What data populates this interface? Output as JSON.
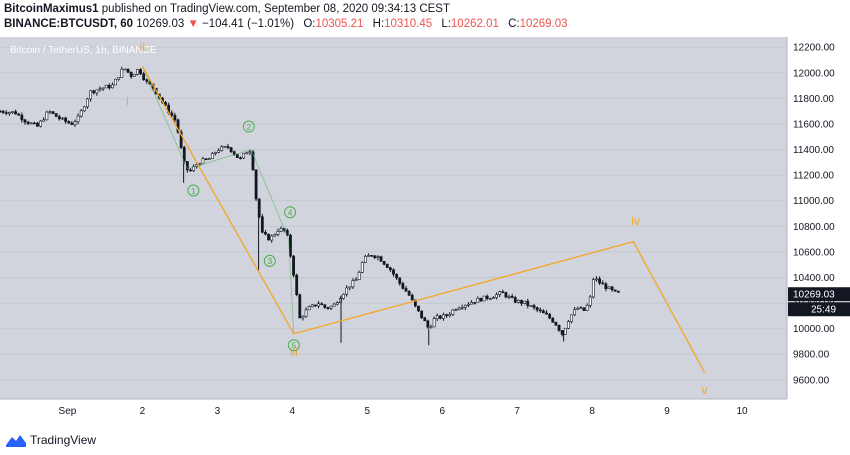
{
  "header": {
    "author": "BitcoinMaximus1",
    "published_text": "published on TradingView.com, September 08, 2020 09:34:13 CEST",
    "symbol": "BINANCE:BTCUSDT, 60",
    "last": "10269.03",
    "change": "−104.41 (−1.01%)",
    "o_label": "O:",
    "o": "10305.21",
    "h_label": "H:",
    "h": "10310.45",
    "l_label": "L:",
    "l": "10262.01",
    "c_label": "C:",
    "c": "10269.03",
    "arrow": "▼"
  },
  "footer": {
    "brand": "TradingView"
  },
  "colors": {
    "background": "#d1d4dc",
    "wave": "#f5a623",
    "subwave": "#4caf50",
    "candle": "#131722",
    "price_tag": "#131722"
  },
  "chart_data": {
    "type": "candlestick",
    "title": "Bitcoin / TetherUS, 1h, BINANCE",
    "x_ticks": [
      "Sep",
      "2",
      "3",
      "4",
      "5",
      "6",
      "7",
      "8",
      "9",
      "10"
    ],
    "x_tick_values": [
      1,
      2,
      3,
      4,
      5,
      6,
      7,
      8,
      9,
      10
    ],
    "xlim": [
      0.1,
      10.6
    ],
    "ylim": [
      9450,
      12280
    ],
    "y_ticks": [
      9600,
      9800,
      10000,
      10200,
      10400,
      10600,
      10800,
      11000,
      11200,
      11400,
      11600,
      11800,
      12000,
      12200
    ],
    "last_price_label": "10269.03",
    "countdown_label": "25:49",
    "price_path": [
      [
        0.1,
        11700
      ],
      [
        0.3,
        11690
      ],
      [
        0.45,
        11620
      ],
      [
        0.6,
        11580
      ],
      [
        0.75,
        11700
      ],
      [
        0.9,
        11640
      ],
      [
        1.05,
        11600
      ],
      [
        1.15,
        11650
      ],
      [
        1.3,
        11850
      ],
      [
        1.45,
        11880
      ],
      [
        1.6,
        11900
      ],
      [
        1.75,
        12040
      ],
      [
        1.85,
        11980
      ],
      [
        1.95,
        12030
      ],
      [
        2.05,
        11930
      ],
      [
        2.15,
        11880
      ],
      [
        2.3,
        11740
      ],
      [
        2.45,
        11620
      ],
      [
        2.55,
        11300
      ],
      [
        2.62,
        11220
      ],
      [
        2.75,
        11300
      ],
      [
        2.9,
        11330
      ],
      [
        3.0,
        11400
      ],
      [
        3.15,
        11420
      ],
      [
        3.3,
        11320
      ],
      [
        3.38,
        11380
      ],
      [
        3.45,
        11400
      ],
      [
        3.52,
        11000
      ],
      [
        3.6,
        10740
      ],
      [
        3.7,
        10700
      ],
      [
        3.82,
        10780
      ],
      [
        3.92,
        10760
      ],
      [
        4.02,
        10420
      ],
      [
        4.1,
        10080
      ],
      [
        4.2,
        10150
      ],
      [
        4.35,
        10200
      ],
      [
        4.45,
        10160
      ],
      [
        4.55,
        10180
      ],
      [
        4.65,
        10260
      ],
      [
        4.75,
        10330
      ],
      [
        4.85,
        10380
      ],
      [
        4.95,
        10540
      ],
      [
        5.05,
        10580
      ],
      [
        5.15,
        10560
      ],
      [
        5.3,
        10470
      ],
      [
        5.45,
        10340
      ],
      [
        5.55,
        10270
      ],
      [
        5.65,
        10160
      ],
      [
        5.75,
        10070
      ],
      [
        5.82,
        10000
      ],
      [
        5.9,
        10080
      ],
      [
        6.05,
        10100
      ],
      [
        6.2,
        10170
      ],
      [
        6.35,
        10200
      ],
      [
        6.5,
        10230
      ],
      [
        6.65,
        10250
      ],
      [
        6.8,
        10280
      ],
      [
        6.95,
        10220
      ],
      [
        7.1,
        10200
      ],
      [
        7.25,
        10150
      ],
      [
        7.4,
        10100
      ],
      [
        7.5,
        10050
      ],
      [
        7.6,
        9960
      ],
      [
        7.7,
        10090
      ],
      [
        7.8,
        10160
      ],
      [
        7.9,
        10140
      ],
      [
        7.97,
        10220
      ],
      [
        8.02,
        10400
      ],
      [
        8.1,
        10360
      ],
      [
        8.2,
        10320
      ],
      [
        8.3,
        10280
      ],
      [
        8.38,
        10270
      ]
    ],
    "spikes": [
      {
        "x": 2.55,
        "low": 11140
      },
      {
        "x": 3.55,
        "low": 10460
      },
      {
        "x": 4.65,
        "low": 9890
      },
      {
        "x": 5.82,
        "low": 9870
      },
      {
        "x": 7.62,
        "low": 9900
      }
    ],
    "wave_path": [
      {
        "x": 2.0,
        "y": 12050
      },
      {
        "x": 4.02,
        "y": 9960
      },
      {
        "x": 8.55,
        "y": 10680
      },
      {
        "x": 9.5,
        "y": 9660
      }
    ],
    "subwave_path": [
      {
        "x": 2.0,
        "y": 12050
      },
      {
        "x": 2.6,
        "y": 11250
      },
      {
        "x": 3.45,
        "y": 11400
      },
      {
        "x": 3.95,
        "y": 10700
      },
      {
        "x": 4.02,
        "y": 9960
      }
    ],
    "wave_labels": [
      {
        "text": "i",
        "x": 1.8,
        "y": 11780,
        "kind": "wave"
      },
      {
        "text": "ii",
        "x": 2.0,
        "y": 12200,
        "kind": "wave"
      },
      {
        "text": "iii",
        "x": 4.02,
        "y": 9820,
        "kind": "wave"
      },
      {
        "text": "iv",
        "x": 8.58,
        "y": 10840,
        "kind": "wave"
      },
      {
        "text": "v",
        "x": 9.5,
        "y": 9520,
        "kind": "wave"
      },
      {
        "text": "1",
        "x": 2.68,
        "y": 11080,
        "kind": "sub"
      },
      {
        "text": "2",
        "x": 3.42,
        "y": 11580,
        "kind": "sub"
      },
      {
        "text": "3",
        "x": 3.7,
        "y": 10530,
        "kind": "sub"
      },
      {
        "text": "4",
        "x": 3.97,
        "y": 10910,
        "kind": "sub"
      },
      {
        "text": "5",
        "x": 4.02,
        "y": 9870,
        "kind": "sub"
      }
    ]
  }
}
